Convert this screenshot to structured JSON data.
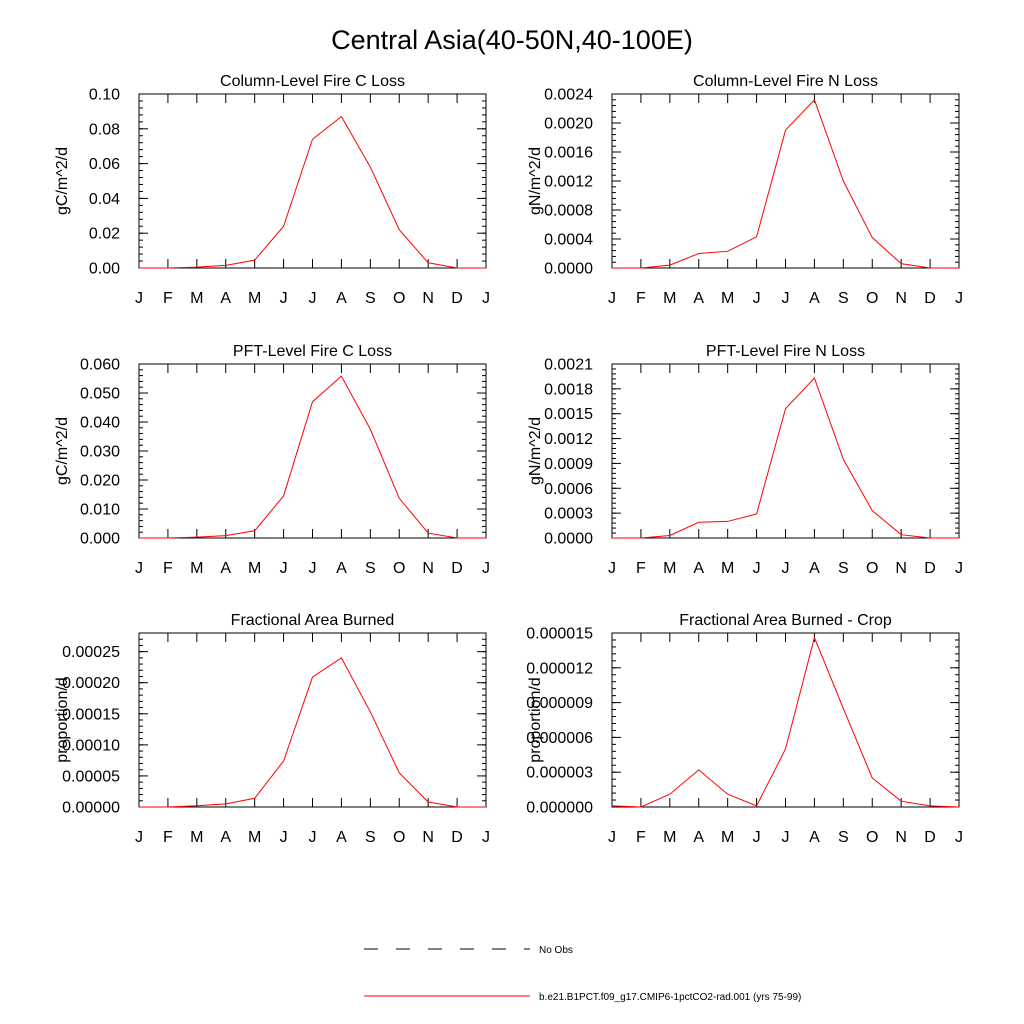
{
  "title": "Central Asia(40-50N,40-100E)",
  "legend": {
    "placement": "bottom-center",
    "entries": [
      {
        "label": "No Obs",
        "color": "#000000",
        "dash": true
      },
      {
        "label": "b.e21.B1PCT.f09_g17.CMIP6-1pctCO2-rad.001 (yrs 75-99)",
        "color": "#ff0000",
        "dash": false
      }
    ]
  },
  "chart_data": [
    {
      "type": "line",
      "title": "Column-Level Fire C Loss",
      "ylabel": "gC/m^2/d",
      "xlabel": "",
      "categories": [
        "J",
        "F",
        "M",
        "A",
        "M",
        "J",
        "J",
        "A",
        "S",
        "O",
        "N",
        "D",
        "J"
      ],
      "ylim": [
        0,
        0.1
      ],
      "yticks": [
        "0.00",
        "0.02",
        "0.04",
        "0.06",
        "0.08",
        "0.10"
      ],
      "grid": false,
      "series": [
        {
          "color": "#ff0000",
          "values": [
            0.0,
            0.0,
            0.0005,
            0.0015,
            0.0045,
            0.024,
            0.074,
            0.087,
            0.058,
            0.022,
            0.003,
            0.0,
            0.0
          ]
        }
      ]
    },
    {
      "type": "line",
      "title": "Column-Level Fire N Loss",
      "ylabel": "gN/m^2/d",
      "xlabel": "",
      "categories": [
        "J",
        "F",
        "M",
        "A",
        "M",
        "J",
        "J",
        "A",
        "S",
        "O",
        "N",
        "D",
        "J"
      ],
      "ylim": [
        0,
        0.0024
      ],
      "yticks": [
        "0.0000",
        "0.0004",
        "0.0008",
        "0.0012",
        "0.0016",
        "0.0020",
        "0.0024"
      ],
      "grid": false,
      "series": [
        {
          "color": "#ff0000",
          "values": [
            0.0,
            0.0,
            4e-05,
            0.0002,
            0.00023,
            0.00043,
            0.0019,
            0.00232,
            0.0012,
            0.00042,
            6e-05,
            0.0,
            0.0
          ]
        }
      ]
    },
    {
      "type": "line",
      "title": "PFT-Level Fire C Loss",
      "ylabel": "gC/m^2/d",
      "xlabel": "",
      "categories": [
        "J",
        "F",
        "M",
        "A",
        "M",
        "J",
        "J",
        "A",
        "S",
        "O",
        "N",
        "D",
        "J"
      ],
      "ylim": [
        0,
        0.06
      ],
      "yticks": [
        "0.000",
        "0.010",
        "0.020",
        "0.030",
        "0.040",
        "0.050",
        "0.060"
      ],
      "grid": false,
      "series": [
        {
          "color": "#ff0000",
          "values": [
            0.0,
            0.0,
            0.0003,
            0.0008,
            0.0025,
            0.0145,
            0.047,
            0.0558,
            0.0375,
            0.0137,
            0.0017,
            0.0,
            0.0
          ]
        }
      ]
    },
    {
      "type": "line",
      "title": "PFT-Level Fire N Loss",
      "ylabel": "gN/m^2/d",
      "xlabel": "",
      "categories": [
        "J",
        "F",
        "M",
        "A",
        "M",
        "J",
        "J",
        "A",
        "S",
        "O",
        "N",
        "D",
        "J"
      ],
      "ylim": [
        0,
        0.0021
      ],
      "yticks": [
        "0.0000",
        "0.0003",
        "0.0006",
        "0.0009",
        "0.0012",
        "0.0015",
        "0.0018",
        "0.0021"
      ],
      "grid": false,
      "series": [
        {
          "color": "#ff0000",
          "values": [
            0.0,
            0.0,
            3e-05,
            0.00019,
            0.0002,
            0.00029,
            0.00156,
            0.00193,
            0.00095,
            0.00033,
            4e-05,
            0.0,
            0.0
          ]
        }
      ]
    },
    {
      "type": "line",
      "title": "Fractional Area Burned",
      "ylabel": "proportion/d",
      "xlabel": "",
      "categories": [
        "J",
        "F",
        "M",
        "A",
        "M",
        "J",
        "J",
        "A",
        "S",
        "O",
        "N",
        "D",
        "J"
      ],
      "ylim": [
        0,
        0.00028
      ],
      "yticks": [
        "0.00000",
        "0.00005",
        "0.00010",
        "0.00015",
        "0.00020",
        "0.00025"
      ],
      "grid": false,
      "series": [
        {
          "color": "#ff0000",
          "values": [
            0.0,
            0.0,
            2e-06,
            5e-06,
            1.4e-05,
            7.4e-05,
            0.000209,
            0.00024,
            0.000153,
            5.5e-05,
            8e-06,
            0.0,
            0.0
          ]
        }
      ]
    },
    {
      "type": "line",
      "title": "Fractional Area Burned - Crop",
      "ylabel": "proportion/d",
      "xlabel": "",
      "categories": [
        "J",
        "F",
        "M",
        "A",
        "M",
        "J",
        "J",
        "A",
        "S",
        "O",
        "N",
        "D",
        "J"
      ],
      "ylim": [
        0,
        1.5e-05
      ],
      "yticks": [
        "0.000000",
        "0.000003",
        "0.000006",
        "0.000009",
        "0.000012",
        "0.000015"
      ],
      "grid": false,
      "series": [
        {
          "color": "#ff0000",
          "values": [
            1e-07,
            0.0,
            1.1e-06,
            3.2e-06,
            1.1e-06,
            1e-07,
            5e-06,
            1.46e-05,
            8.5e-06,
            2.5e-06,
            5e-07,
            1e-07,
            0.0
          ]
        }
      ]
    }
  ]
}
